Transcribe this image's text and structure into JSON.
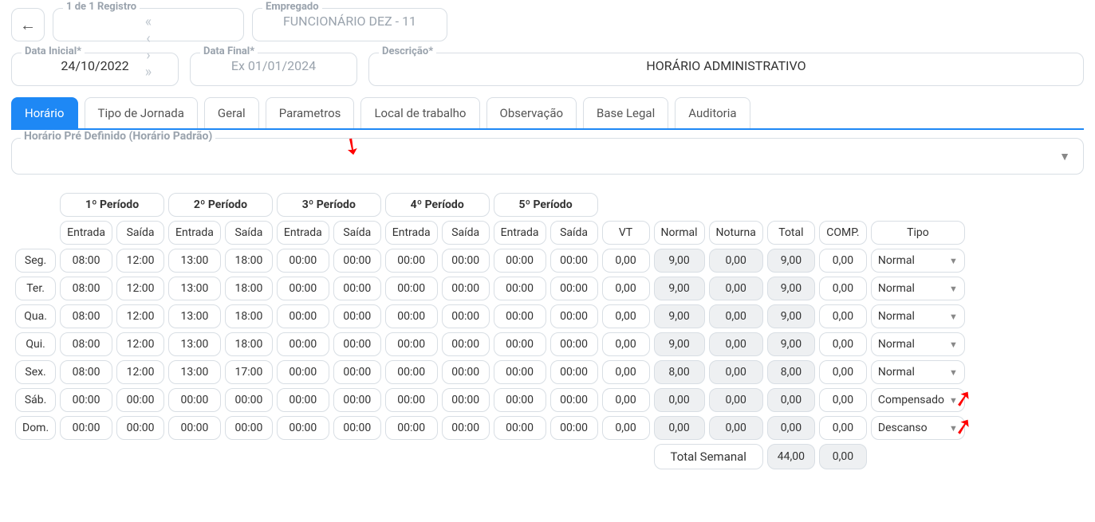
{
  "header": {
    "registro_label": "1 de 1 Registro",
    "empregado_label": "Empregado",
    "empregado_value": "FUNCIONÁRIO DEZ - 11"
  },
  "fields": {
    "data_inicial_label": "Data Inicial*",
    "data_inicial_value": "24/10/2022",
    "data_final_label": "Data Final*",
    "data_final_placeholder": "Ex 01/01/2024",
    "descricao_label": "Descrição*",
    "descricao_value": "HORÁRIO ADMINISTRATIVO"
  },
  "tabs": [
    "Horário",
    "Tipo de Jornada",
    "Geral",
    "Parametros",
    "Local de trabalho",
    "Observação",
    "Base Legal",
    "Auditoria"
  ],
  "active_tab_index": 0,
  "predef_label": "Horário Pré Definido (Horário Padrão)",
  "periods": [
    "1º Período",
    "2º Período",
    "3º Período",
    "4º Período",
    "5º Período"
  ],
  "sub_headers": [
    "Entrada",
    "Saída",
    "Entrada",
    "Saída",
    "Entrada",
    "Saída",
    "Entrada",
    "Saída",
    "Entrada",
    "Saída",
    "VT",
    "Normal",
    "Noturna",
    "Total",
    "COMP.",
    "Tipo"
  ],
  "readonly_cols": [
    11,
    12,
    13
  ],
  "days": [
    "Seg.",
    "Ter.",
    "Qua.",
    "Qui.",
    "Sex.",
    "Sáb.",
    "Dom."
  ],
  "rows": [
    [
      "08:00",
      "12:00",
      "13:00",
      "18:00",
      "00:00",
      "00:00",
      "00:00",
      "00:00",
      "00:00",
      "00:00",
      "0,00",
      "9,00",
      "0,00",
      "9,00",
      "0,00",
      "Normal"
    ],
    [
      "08:00",
      "12:00",
      "13:00",
      "18:00",
      "00:00",
      "00:00",
      "00:00",
      "00:00",
      "00:00",
      "00:00",
      "0,00",
      "9,00",
      "0,00",
      "9,00",
      "0,00",
      "Normal"
    ],
    [
      "08:00",
      "12:00",
      "13:00",
      "18:00",
      "00:00",
      "00:00",
      "00:00",
      "00:00",
      "00:00",
      "00:00",
      "0,00",
      "9,00",
      "0,00",
      "9,00",
      "0,00",
      "Normal"
    ],
    [
      "08:00",
      "12:00",
      "13:00",
      "18:00",
      "00:00",
      "00:00",
      "00:00",
      "00:00",
      "00:00",
      "00:00",
      "0,00",
      "9,00",
      "0,00",
      "9,00",
      "0,00",
      "Normal"
    ],
    [
      "08:00",
      "12:00",
      "13:00",
      "17:00",
      "00:00",
      "00:00",
      "00:00",
      "00:00",
      "00:00",
      "00:00",
      "0,00",
      "8,00",
      "0,00",
      "8,00",
      "0,00",
      "Normal"
    ],
    [
      "00:00",
      "00:00",
      "00:00",
      "00:00",
      "00:00",
      "00:00",
      "00:00",
      "00:00",
      "00:00",
      "00:00",
      "0,00",
      "0,00",
      "0,00",
      "0,00",
      "0,00",
      "Compensado"
    ],
    [
      "00:00",
      "00:00",
      "00:00",
      "00:00",
      "00:00",
      "00:00",
      "00:00",
      "00:00",
      "00:00",
      "00:00",
      "0,00",
      "0,00",
      "0,00",
      "0,00",
      "0,00",
      "Descanso"
    ]
  ],
  "footer": {
    "label": "Total Semanal",
    "total": "44,00",
    "noturna": "0,00"
  },
  "colors": {
    "primary": "#1e88f5",
    "border": "#d8dee4",
    "muted": "#9aa3ad",
    "readonly_bg": "#eef0f2",
    "arrow": "#ff0000"
  }
}
